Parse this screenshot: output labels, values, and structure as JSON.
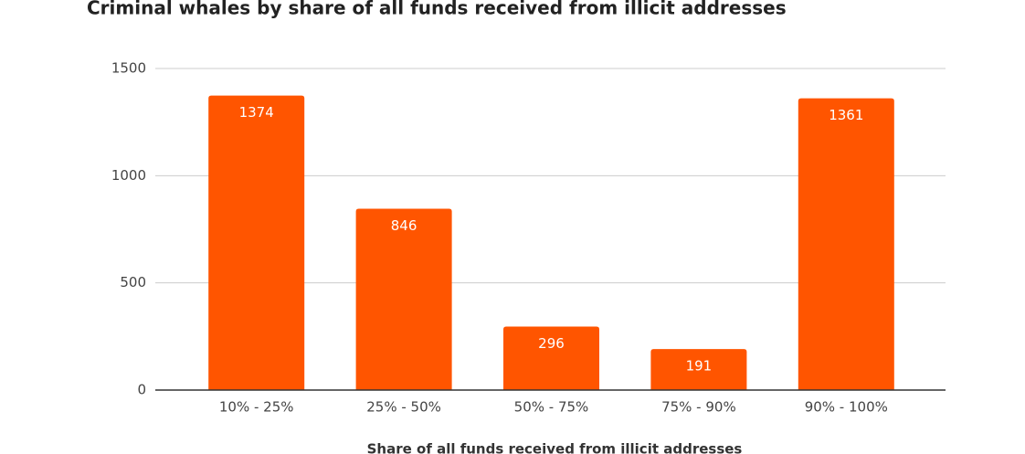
{
  "chart_data": {
    "type": "bar",
    "title": "Criminal whales by share of all funds received from illicit addresses",
    "x_label": "Share of all funds received from illicit addresses",
    "categories": [
      "10% - 25%",
      "25% - 50%",
      "50% - 75%",
      "75% - 90%",
      "90% - 100%"
    ],
    "values": [
      1374,
      846,
      296,
      191,
      1361
    ],
    "color": "#ff5500",
    "ylim": [
      0,
      1500
    ],
    "yticks": [
      0,
      500,
      1000,
      1500
    ],
    "grid": true
  }
}
